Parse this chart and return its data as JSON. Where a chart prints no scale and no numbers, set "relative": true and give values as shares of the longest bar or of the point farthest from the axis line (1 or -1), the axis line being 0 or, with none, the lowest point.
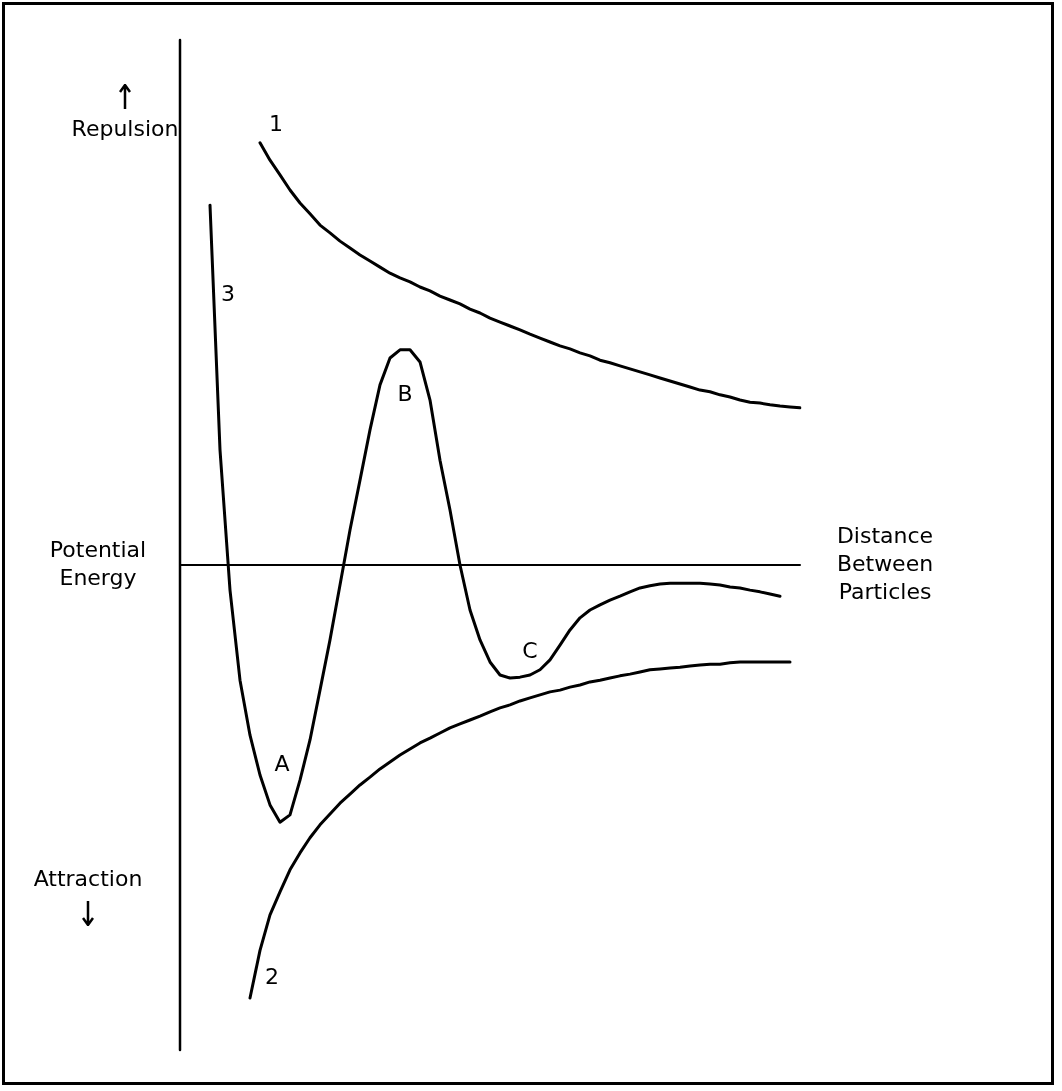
{
  "chart_data": {
    "type": "line",
    "relative": true,
    "ylabel": "Potential Energy",
    "xlabel": "Distance Between Particles",
    "legend": false,
    "marker": "none",
    "line_style": "solid",
    "annotations": [
      "Repulsion",
      "Attraction",
      "A",
      "B",
      "C"
    ],
    "categories": [
      null,
      null,
      null,
      null,
      null,
      null,
      null,
      null,
      null,
      null,
      null,
      null,
      null,
      null,
      null,
      null,
      null,
      null,
      null,
      null,
      null,
      null,
      null,
      null,
      null,
      null,
      null,
      null,
      null,
      null,
      null,
      null,
      null,
      null,
      null,
      null,
      null,
      null,
      null,
      null,
      null,
      null,
      null,
      null,
      null,
      null,
      null,
      null,
      null,
      null,
      null,
      null,
      null,
      null,
      null,
      null,
      null,
      null,
      null,
      null,
      null,
      null,
      null
    ],
    "series": [
      {
        "name": "1",
        "color": "#000000",
        "values": [
          null,
          null,
          null,
          null,
          null,
          null,
          null,
          null,
          0.975,
          0.935,
          0.901,
          0.866,
          0.836,
          0.811,
          0.785,
          0.767,
          0.748,
          0.732,
          0.716,
          0.702,
          0.688,
          0.674,
          0.663,
          0.654,
          0.642,
          0.633,
          0.621,
          0.612,
          0.603,
          0.591,
          0.582,
          0.57,
          0.561,
          0.552,
          0.543,
          0.533,
          0.524,
          0.515,
          0.506,
          0.499,
          0.49,
          0.483,
          0.473,
          0.467,
          0.46,
          0.453,
          0.446,
          0.439,
          0.432,
          0.425,
          0.418,
          0.411,
          0.404,
          0.4,
          0.393,
          0.388,
          0.381,
          0.376,
          0.374,
          0.37,
          0.367,
          0.365,
          0.363
        ]
      },
      {
        "name": "2",
        "color": "#000000",
        "values": [
          null,
          null,
          null,
          null,
          null,
          null,
          null,
          -1.0,
          -0.89,
          -0.808,
          -0.755,
          -0.704,
          -0.665,
          -0.63,
          -0.6,
          -0.575,
          -0.55,
          -0.529,
          -0.508,
          -0.49,
          -0.471,
          -0.455,
          -0.439,
          -0.425,
          -0.411,
          -0.4,
          -0.388,
          -0.376,
          -0.367,
          -0.358,
          -0.349,
          -0.339,
          -0.33,
          -0.323,
          -0.314,
          -0.307,
          -0.3,
          -0.293,
          -0.289,
          -0.282,
          -0.277,
          -0.27,
          -0.266,
          -0.261,
          -0.256,
          -0.252,
          -0.247,
          -0.242,
          -0.24,
          -0.238,
          -0.236,
          -0.233,
          -0.231,
          -0.229,
          -0.229,
          -0.226,
          -0.224,
          -0.224,
          -0.224,
          -0.224,
          -0.224,
          -0.224,
          null
        ]
      },
      {
        "name": "3",
        "color": "#000000",
        "values": [
          null,
          null,
          null,
          0.831,
          0.266,
          -0.058,
          -0.266,
          -0.393,
          -0.485,
          -0.554,
          -0.594,
          -0.577,
          -0.497,
          -0.404,
          -0.289,
          -0.173,
          -0.046,
          0.081,
          0.196,
          0.312,
          0.416,
          0.478,
          0.497,
          0.497,
          0.469,
          0.381,
          0.242,
          0.127,
          0.0,
          -0.104,
          -0.173,
          -0.224,
          -0.254,
          -0.261,
          -0.259,
          -0.254,
          -0.242,
          -0.219,
          -0.185,
          -0.15,
          -0.122,
          -0.104,
          -0.092,
          -0.081,
          -0.072,
          -0.062,
          -0.053,
          -0.048,
          -0.044,
          -0.042,
          -0.042,
          -0.042,
          -0.042,
          -0.044,
          -0.046,
          -0.051,
          -0.053,
          -0.058,
          -0.062,
          -0.067,
          -0.072,
          null,
          null
        ]
      }
    ]
  }
}
